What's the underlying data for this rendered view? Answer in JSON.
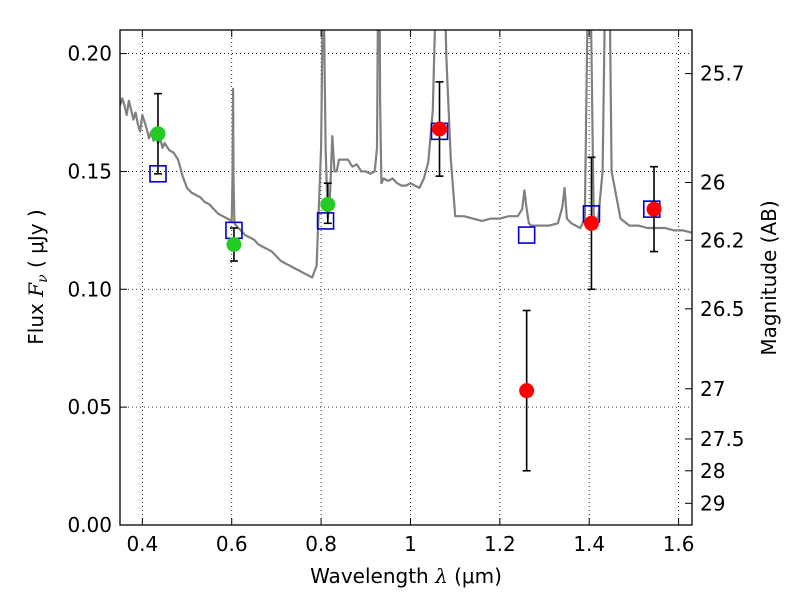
{
  "chart_data": {
    "type": "scatter",
    "title": "",
    "xlabel": {
      "text": "Wavelength",
      "symbol": "λ",
      "unit": "(μm)"
    },
    "ylabel": {
      "text": "Flux",
      "symbol": "F",
      "symbol_sub": "ν",
      "unit": "( μJy )"
    },
    "ylabel_right": "Magnitude (AB)",
    "xlim": [
      0.35,
      1.63
    ],
    "ylim": [
      0.0,
      0.21
    ],
    "x_ticks": [
      0.4,
      0.6,
      0.8,
      1.0,
      1.2,
      1.4,
      1.6
    ],
    "x_tick_labels": [
      "0.4",
      "0.6",
      "0.8",
      "1",
      "1.2",
      "1.4",
      "1.6"
    ],
    "y_ticks": [
      0.0,
      0.05,
      0.1,
      0.15,
      0.2
    ],
    "y_tick_labels": [
      "0.00",
      "0.05",
      "0.10",
      "0.15",
      "0.20"
    ],
    "right_ticks": [
      {
        "label": "25.7",
        "flux": 0.1915
      },
      {
        "label": "26",
        "flux": 0.1453
      },
      {
        "label": "26.2",
        "flux": 0.1208
      },
      {
        "label": "26.5",
        "flux": 0.0917
      },
      {
        "label": "27",
        "flux": 0.0578
      },
      {
        "label": "27.5",
        "flux": 0.0365
      },
      {
        "label": "28",
        "flux": 0.023
      },
      {
        "label": "29",
        "flux": 0.0092
      }
    ],
    "grid": true,
    "colors": {
      "model": "#808080",
      "green": "#22cc22",
      "red": "#ff0000",
      "square": "#0000cc",
      "errorbar": "#000000"
    },
    "series": [
      {
        "kind": "model",
        "style": "line",
        "x": [
          0.35,
          0.355,
          0.36,
          0.365,
          0.37,
          0.375,
          0.38,
          0.385,
          0.39,
          0.395,
          0.4,
          0.405,
          0.41,
          0.415,
          0.42,
          0.425,
          0.43,
          0.435,
          0.44,
          0.445,
          0.45,
          0.46,
          0.47,
          0.48,
          0.49,
          0.5,
          0.51,
          0.52,
          0.53,
          0.54,
          0.55,
          0.56,
          0.57,
          0.58,
          0.59,
          0.6,
          0.602,
          0.603,
          0.604,
          0.606,
          0.61,
          0.62,
          0.63,
          0.64,
          0.65,
          0.66,
          0.67,
          0.68,
          0.69,
          0.7,
          0.71,
          0.72,
          0.73,
          0.74,
          0.75,
          0.76,
          0.77,
          0.78,
          0.79,
          0.8,
          0.805,
          0.81,
          0.815,
          0.82,
          0.825,
          0.83,
          0.835,
          0.84,
          0.85,
          0.86,
          0.87,
          0.88,
          0.89,
          0.9,
          0.91,
          0.92,
          0.925,
          0.928,
          0.93,
          0.932,
          0.935,
          0.94,
          0.95,
          0.96,
          0.97,
          0.98,
          0.99,
          1.0,
          1.01,
          1.02,
          1.03,
          1.04,
          1.05,
          1.06,
          1.07,
          1.08,
          1.09,
          1.1,
          1.12,
          1.14,
          1.16,
          1.18,
          1.2,
          1.22,
          1.24,
          1.25,
          1.255,
          1.26,
          1.265,
          1.27,
          1.29,
          1.31,
          1.33,
          1.34,
          1.345,
          1.35,
          1.36,
          1.38,
          1.39,
          1.395,
          1.4,
          1.405,
          1.41,
          1.42,
          1.43,
          1.435,
          1.44,
          1.445,
          1.45,
          1.47,
          1.49,
          1.51,
          1.53,
          1.55,
          1.57,
          1.59,
          1.61,
          1.63
        ],
        "y": [
          0.178,
          0.181,
          0.178,
          0.174,
          0.18,
          0.176,
          0.172,
          0.175,
          0.17,
          0.167,
          0.174,
          0.171,
          0.168,
          0.164,
          0.167,
          0.163,
          0.166,
          0.162,
          0.164,
          0.16,
          0.162,
          0.159,
          0.158,
          0.155,
          0.148,
          0.143,
          0.141,
          0.14,
          0.139,
          0.137,
          0.136,
          0.134,
          0.132,
          0.131,
          0.13,
          0.129,
          0.148,
          0.185,
          0.148,
          0.128,
          0.127,
          0.125,
          0.123,
          0.122,
          0.121,
          0.119,
          0.118,
          0.117,
          0.116,
          0.114,
          0.112,
          0.111,
          0.11,
          0.109,
          0.108,
          0.107,
          0.106,
          0.105,
          0.11,
          0.16,
          0.24,
          0.16,
          0.13,
          0.14,
          0.165,
          0.15,
          0.15,
          0.155,
          0.155,
          0.155,
          0.152,
          0.153,
          0.15,
          0.15,
          0.149,
          0.15,
          0.16,
          0.24,
          0.26,
          0.18,
          0.145,
          0.147,
          0.146,
          0.147,
          0.145,
          0.144,
          0.144,
          0.145,
          0.144,
          0.143,
          0.147,
          0.154,
          0.176,
          0.25,
          0.3,
          0.2,
          0.156,
          0.131,
          0.131,
          0.13,
          0.129,
          0.13,
          0.13,
          0.131,
          0.131,
          0.134,
          0.142,
          0.134,
          0.128,
          0.127,
          0.127,
          0.127,
          0.128,
          0.135,
          0.143,
          0.13,
          0.128,
          0.126,
          0.13,
          0.2,
          0.26,
          0.2,
          0.13,
          0.13,
          0.15,
          0.22,
          0.26,
          0.24,
          0.15,
          0.13,
          0.127,
          0.127,
          0.126,
          0.126,
          0.126,
          0.125,
          0.125,
          0.124
        ]
      },
      {
        "kind": "model_photometry",
        "style": "open-square",
        "x": [
          0.435,
          0.605,
          0.81,
          1.065,
          1.26,
          1.405,
          1.54
        ],
        "y": [
          0.149,
          0.125,
          0.129,
          0.167,
          0.123,
          0.132,
          0.134
        ]
      },
      {
        "kind": "observed",
        "color_key": "green",
        "style": "filled-circle",
        "x": [
          0.435,
          0.605,
          0.815
        ],
        "y": [
          0.166,
          0.119,
          0.136
        ],
        "err_lo": [
          0.017,
          0.007,
          0.008
        ],
        "err_hi": [
          0.017,
          0.007,
          0.009
        ]
      },
      {
        "kind": "observed",
        "color_key": "red",
        "style": "filled-circle",
        "x": [
          1.065,
          1.26,
          1.405,
          1.545
        ],
        "y": [
          0.168,
          0.057,
          0.128,
          0.134
        ],
        "err_lo": [
          0.02,
          0.034,
          0.028,
          0.018
        ],
        "err_hi": [
          0.02,
          0.034,
          0.028,
          0.018
        ]
      }
    ]
  }
}
